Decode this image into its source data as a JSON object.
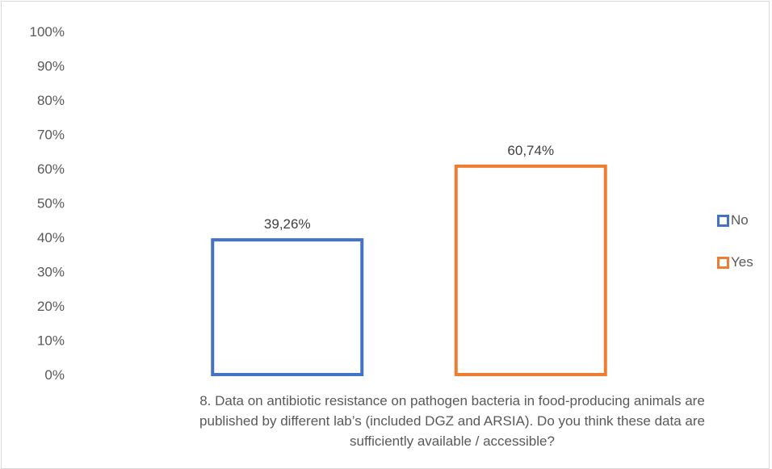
{
  "chart_data": {
    "type": "bar",
    "categories": [
      "No",
      "Yes"
    ],
    "values": [
      39.26,
      60.74
    ],
    "data_labels": [
      "39,26%",
      "60,74%"
    ],
    "colors": [
      "#4472c4",
      "#ed7d31"
    ],
    "xlabel": "8. Data on antibiotic resistance on pathogen bacteria in food-producing animals are published by different lab’s (included DGZ and ARSIA). Do you think these data are sufficiently available / accessible?",
    "ylabel": "",
    "ylim": [
      0,
      100
    ],
    "yticks": [
      "0%",
      "10%",
      "20%",
      "30%",
      "40%",
      "50%",
      "60%",
      "70%",
      "80%",
      "90%",
      "100%"
    ],
    "grid": false,
    "bar_style": "outline",
    "legend_position": "right"
  }
}
